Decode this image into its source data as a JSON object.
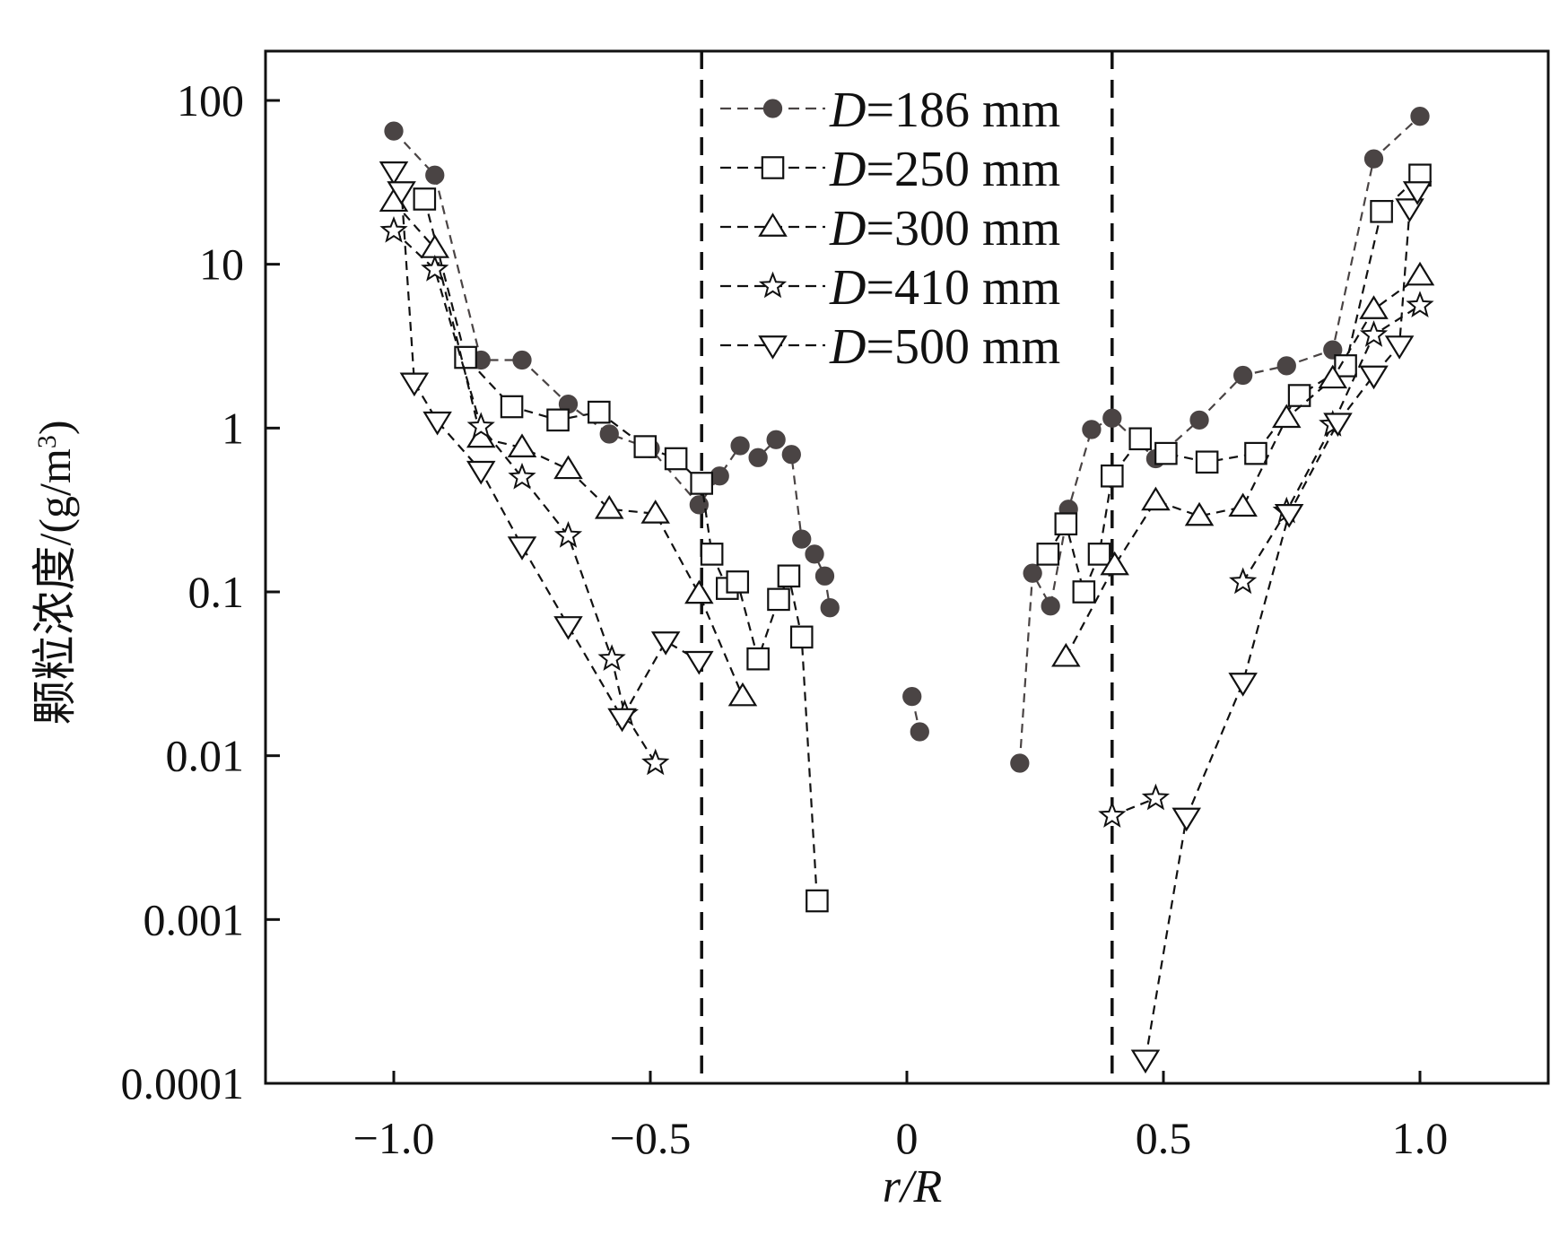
{
  "chart_data": {
    "type": "scatter",
    "title": "",
    "xlabel": "r/R",
    "ylabel": "颗粒浓度/(g/m³)",
    "ylabel_main": "颗粒浓度/(g/m",
    "ylabel_sup": "3",
    "ylabel_close": ")",
    "yscale": "log",
    "xlim": [
      -1.25,
      1.25
    ],
    "ylim": [
      0.0001,
      200
    ],
    "xticks": [
      -1.0,
      -0.5,
      0,
      0.5,
      1.0
    ],
    "xtick_labels": [
      "−1.0",
      "−0.5",
      "0",
      "0.5",
      "1.0"
    ],
    "yticks": [
      0.0001,
      0.001,
      0.01,
      0.1,
      1,
      10,
      100
    ],
    "ytick_labels": [
      "0.0001",
      "0.001",
      "0.01",
      "0.1",
      "1",
      "10",
      "100"
    ],
    "reference_lines_x": [
      -0.4,
      0.4
    ],
    "legend_position": "top-center",
    "series": [
      {
        "name": "D=186 mm",
        "var": "D",
        "rest": "=186 mm",
        "marker": "circle-filled",
        "color": "#4a4444",
        "points": [
          [
            -1.0,
            65
          ],
          [
            -0.92,
            35
          ],
          [
            -0.83,
            2.6
          ],
          [
            -0.75,
            2.6
          ],
          [
            -0.66,
            1.4
          ],
          [
            -0.58,
            0.92
          ],
          [
            -0.5,
            0.75
          ],
          [
            -0.405,
            0.34
          ],
          [
            -0.365,
            0.51
          ],
          [
            -0.325,
            0.78
          ],
          [
            -0.29,
            0.66
          ],
          [
            -0.255,
            0.85
          ],
          [
            -0.225,
            0.69
          ],
          [
            -0.205,
            0.21
          ],
          [
            -0.18,
            0.17
          ],
          [
            -0.16,
            0.125
          ],
          [
            -0.15,
            0.08
          ],
          null,
          [
            0.01,
            0.023
          ],
          [
            0.025,
            0.014
          ],
          null,
          [
            0.22,
            0.009
          ],
          [
            0.245,
            0.13
          ],
          [
            0.28,
            0.082
          ],
          [
            0.315,
            0.32
          ],
          [
            0.36,
            0.98
          ],
          [
            0.4,
            1.15
          ],
          [
            0.485,
            0.65
          ],
          [
            0.57,
            1.12
          ],
          [
            0.655,
            2.1
          ],
          [
            0.74,
            2.4
          ],
          [
            0.83,
            3.0
          ],
          [
            0.91,
            44
          ],
          [
            1.0,
            80
          ]
        ]
      },
      {
        "name": "D=250 mm",
        "var": "D",
        "rest": "=250 mm",
        "marker": "square",
        "color": "#111111",
        "points": [
          [
            -0.94,
            25
          ],
          [
            -0.86,
            2.7
          ],
          [
            -0.77,
            1.35
          ],
          [
            -0.68,
            1.12
          ],
          [
            -0.6,
            1.25
          ],
          [
            -0.51,
            0.77
          ],
          [
            -0.45,
            0.65
          ],
          [
            -0.4,
            0.46
          ],
          [
            -0.38,
            0.17
          ],
          [
            -0.35,
            0.105
          ],
          [
            -0.33,
            0.115
          ],
          [
            -0.29,
            0.039
          ],
          [
            -0.25,
            0.09
          ],
          [
            -0.23,
            0.125
          ],
          [
            -0.205,
            0.053
          ],
          [
            -0.175,
            0.0013
          ],
          null,
          [
            0.275,
            0.17
          ],
          [
            0.31,
            0.26
          ],
          [
            0.345,
            0.1
          ],
          [
            0.375,
            0.17
          ],
          [
            0.4,
            0.51
          ],
          [
            0.455,
            0.86
          ],
          [
            0.505,
            0.7
          ],
          [
            0.585,
            0.62
          ],
          [
            0.68,
            0.7
          ],
          [
            0.765,
            1.58
          ],
          [
            0.855,
            2.4
          ],
          [
            0.925,
            21
          ],
          [
            1.0,
            35
          ]
        ]
      },
      {
        "name": "D=300 mm",
        "var": "D",
        "rest": "=300 mm",
        "marker": "triangle-up",
        "color": "#111111",
        "points": [
          [
            -1.0,
            24
          ],
          [
            -0.92,
            12.5
          ],
          [
            -0.83,
            0.87
          ],
          [
            -0.75,
            0.76
          ],
          [
            -0.66,
            0.56
          ],
          [
            -0.58,
            0.32
          ],
          [
            -0.49,
            0.3
          ],
          [
            -0.405,
            0.097
          ],
          [
            -0.32,
            0.023
          ],
          null,
          [
            0.31,
            0.04
          ],
          [
            0.405,
            0.145
          ],
          [
            0.485,
            0.36
          ],
          [
            0.57,
            0.29
          ],
          [
            0.655,
            0.33
          ],
          [
            0.74,
            1.15
          ],
          [
            0.83,
            2.0
          ],
          [
            0.91,
            5.3
          ],
          [
            1.0,
            8.5
          ]
        ]
      },
      {
        "name": "D=410 mm",
        "var": "D",
        "rest": "=410 mm",
        "marker": "star",
        "color": "#111111",
        "points": [
          [
            -1.0,
            16
          ],
          [
            -0.92,
            9.3
          ],
          [
            -0.83,
            1.02
          ],
          [
            -0.75,
            0.5
          ],
          [
            -0.66,
            0.22
          ],
          [
            -0.575,
            0.039
          ],
          [
            -0.55,
            0.018
          ],
          [
            -0.49,
            0.009
          ],
          null,
          [
            0.4,
            0.0043
          ],
          [
            0.485,
            0.0055
          ],
          null,
          [
            0.655,
            0.115
          ],
          [
            0.74,
            0.31
          ],
          [
            0.83,
            1.05
          ],
          [
            0.91,
            3.7
          ],
          [
            1.0,
            5.6
          ]
        ]
      },
      {
        "name": "D=500 mm",
        "var": "D",
        "rest": "=500 mm",
        "marker": "triangle-down",
        "color": "#111111",
        "points": [
          [
            -1.0,
            37
          ],
          [
            -0.985,
            28
          ],
          [
            -0.96,
            1.9
          ],
          [
            -0.915,
            1.1
          ],
          [
            -0.83,
            0.55
          ],
          [
            -0.75,
            0.19
          ],
          [
            -0.66,
            0.062
          ],
          [
            -0.555,
            0.017
          ],
          [
            -0.47,
            0.05
          ],
          [
            -0.405,
            0.038
          ],
          null,
          [
            0.465,
            0.00014
          ],
          [
            0.545,
            0.0042
          ],
          [
            0.655,
            0.028
          ],
          [
            0.745,
            0.3
          ],
          [
            0.84,
            1.08
          ],
          [
            0.91,
            2.1
          ],
          [
            0.96,
            3.2
          ],
          [
            0.98,
            22
          ],
          [
            0.995,
            28
          ]
        ]
      }
    ]
  }
}
